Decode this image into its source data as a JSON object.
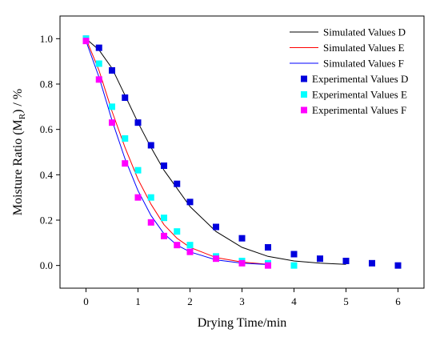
{
  "chart_data": {
    "type": "line",
    "xlabel": "Drying Time/min",
    "ylabel_main": "Moisture Ratio (M",
    "ylabel_sub": "R",
    "ylabel_tail": ") / %",
    "xlim": [
      -0.5,
      6.5
    ],
    "ylim": [
      -0.1,
      1.1
    ],
    "x_ticks": [
      "0",
      "1",
      "2",
      "3",
      "4",
      "5",
      "6"
    ],
    "y_ticks": [
      "0.0",
      "0.2",
      "0.4",
      "0.6",
      "0.8",
      "1.0"
    ],
    "grid": false,
    "legend_position": "top-right",
    "lines": [
      {
        "name": "Simulated Values D",
        "color": "#000000",
        "x": [
          0,
          0.25,
          0.5,
          0.75,
          1,
          1.25,
          1.5,
          1.75,
          2,
          2.5,
          3,
          3.5,
          4,
          4.5,
          5
        ],
        "y": [
          1.0,
          0.95,
          0.87,
          0.75,
          0.63,
          0.52,
          0.42,
          0.34,
          0.26,
          0.15,
          0.08,
          0.04,
          0.02,
          0.01,
          0.005
        ]
      },
      {
        "name": "Simulated Values E",
        "color": "#ff0000",
        "x": [
          0,
          0.25,
          0.5,
          0.75,
          1,
          1.25,
          1.5,
          1.75,
          2,
          2.5,
          3,
          3.5
        ],
        "y": [
          1.0,
          0.86,
          0.68,
          0.52,
          0.38,
          0.27,
          0.18,
          0.12,
          0.08,
          0.035,
          0.015,
          0.005
        ]
      },
      {
        "name": "Simulated Values F",
        "color": "#0000ff",
        "x": [
          0,
          0.25,
          0.5,
          0.75,
          1,
          1.25,
          1.5,
          1.75,
          2,
          2.5,
          3,
          3.5
        ],
        "y": [
          0.99,
          0.83,
          0.64,
          0.47,
          0.33,
          0.22,
          0.14,
          0.09,
          0.06,
          0.025,
          0.01,
          0.004
        ]
      }
    ],
    "scatters": [
      {
        "name": "Experimental Values D",
        "color": "#0000dd",
        "x": [
          0,
          0.25,
          0.5,
          0.75,
          1,
          1.25,
          1.5,
          1.75,
          2,
          2.5,
          3,
          3.5,
          4,
          4.5,
          5,
          5.5,
          6
        ],
        "y": [
          1.0,
          0.96,
          0.86,
          0.74,
          0.63,
          0.53,
          0.44,
          0.36,
          0.28,
          0.17,
          0.12,
          0.08,
          0.05,
          0.03,
          0.02,
          0.01,
          0.0
        ]
      },
      {
        "name": "Experimental Values E",
        "color": "#00ffff",
        "x": [
          0,
          0.25,
          0.5,
          0.75,
          1,
          1.25,
          1.5,
          1.75,
          2,
          2.5,
          3,
          3.5,
          4
        ],
        "y": [
          1.0,
          0.89,
          0.7,
          0.56,
          0.42,
          0.3,
          0.21,
          0.15,
          0.09,
          0.04,
          0.02,
          0.01,
          0.0
        ]
      },
      {
        "name": "Experimental Values F",
        "color": "#ff00ff",
        "x": [
          0,
          0.25,
          0.5,
          0.75,
          1,
          1.25,
          1.5,
          1.75,
          2,
          2.5,
          3,
          3.5
        ],
        "y": [
          0.99,
          0.82,
          0.63,
          0.45,
          0.3,
          0.19,
          0.13,
          0.09,
          0.06,
          0.03,
          0.01,
          0.0
        ]
      }
    ]
  }
}
